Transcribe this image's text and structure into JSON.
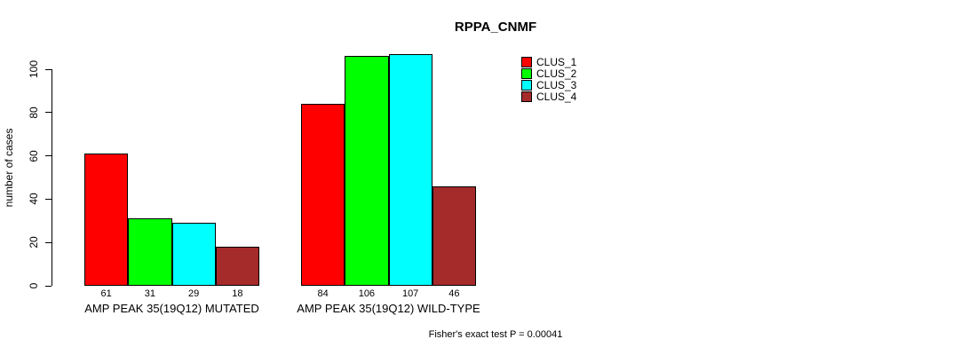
{
  "title": "RPPA_CNMF",
  "footer_note": "Fisher's exact test P = 0.00041",
  "chart_data": {
    "type": "bar",
    "title": "RPPA_CNMF",
    "xlabel": "",
    "ylabel": "number of cases",
    "ylim": [
      0,
      100
    ],
    "yticks": [
      0,
      20,
      40,
      60,
      80,
      100
    ],
    "grid": false,
    "legend_position": "top-right",
    "categories": [
      "AMP PEAK 35(19Q12) MUTATED",
      "AMP PEAK 35(19Q12) WILD-TYPE"
    ],
    "series": [
      {
        "name": "CLUS_1",
        "color": "#FF0000",
        "values": [
          61,
          84
        ]
      },
      {
        "name": "CLUS_2",
        "color": "#00FF00",
        "values": [
          31,
          106
        ]
      },
      {
        "name": "CLUS_3",
        "color": "#00FFFF",
        "values": [
          29,
          107
        ]
      },
      {
        "name": "CLUS_4",
        "color": "#A52A2A",
        "values": [
          18,
          46
        ]
      }
    ],
    "bar_value_labels": [
      [
        61,
        31,
        29,
        18
      ],
      [
        84,
        106,
        107,
        46
      ]
    ],
    "annotation": "Fisher's exact test P = 0.00041",
    "axis_color": "#000000",
    "background_color": "#FFFFFF"
  }
}
